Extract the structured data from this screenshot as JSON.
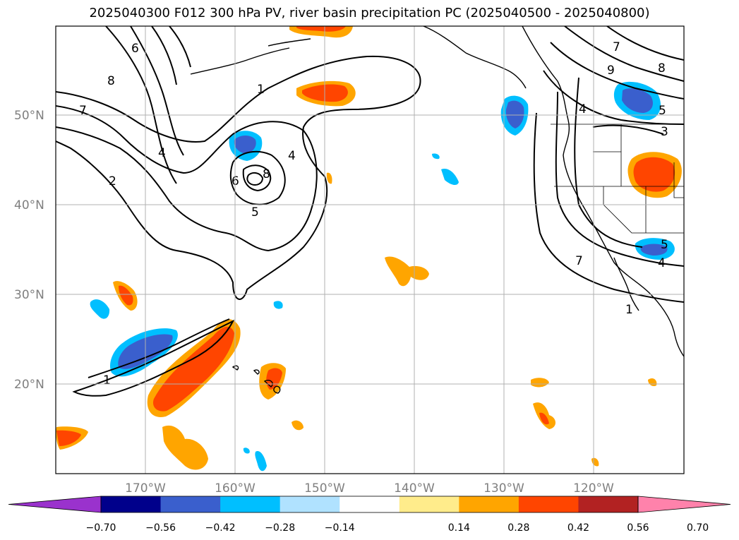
{
  "title": "2025040300 F012 300 hPa PV, river basin precipitation PC (2025040500 - 2025040800)",
  "lat_labels": [
    "50°N",
    "40°N",
    "30°N",
    "20°N"
  ],
  "lon_labels": [
    "170°W",
    "160°W",
    "150°W",
    "140°W",
    "130°W",
    "120°W"
  ],
  "colorbar": {
    "colors": [
      "#9a32cd",
      "#00008b",
      "#3a5fcd",
      "#00bfff",
      "#b0e2ff",
      "#ffffff",
      "#ffec8b",
      "#ffa500",
      "#ff4500",
      "#b22222",
      "#ff82ab"
    ],
    "tick_labels": [
      "−0.70",
      "−0.56",
      "−0.42",
      "−0.28",
      "−0.14",
      "0.14",
      "0.28",
      "0.42",
      "0.56",
      "0.70"
    ]
  },
  "pv_contour_labels": [
    "1",
    "4",
    "5",
    "6",
    "7",
    "8",
    "9",
    "2",
    "3"
  ],
  "extent": {
    "lon": [
      -180,
      -110
    ],
    "lat": [
      10,
      60
    ]
  }
}
